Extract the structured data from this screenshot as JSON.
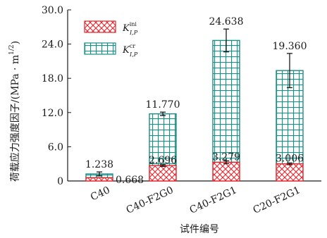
{
  "chart_data": {
    "type": "bar",
    "stacked": true,
    "categories": [
      "C40",
      "C40-F2G0",
      "C40-F2G1",
      "C20-F2G1"
    ],
    "series": [
      {
        "name_symbol": "K",
        "name_superscript": "ini",
        "name_subscript": "Ⅰ,P",
        "values": [
          0.57,
          2.696,
          3.279,
          3.006
        ],
        "error": [
          0.0,
          0.15,
          0.25,
          0.15
        ],
        "color": "#e8232a",
        "pattern": "crosshatch"
      },
      {
        "name_symbol": "K",
        "name_superscript": "cr",
        "name_subscript": "Ⅰ,P",
        "values": [
          0.668,
          9.074,
          21.359,
          16.354
        ],
        "error": [
          0.35,
          0.3,
          2.0,
          3.0
        ],
        "color": "#1b8f86",
        "pattern": "grid"
      }
    ],
    "total_labels": [
      "1.238",
      "11.770",
      "24.638",
      "19.360"
    ],
    "ini_labels": [
      "",
      "2.696",
      "3.279",
      "3.006"
    ],
    "extra_labels": [
      "0.668",
      "",
      "",
      ""
    ],
    "xlabel": "试件编号",
    "ylabel": "荷载应力强度因子/(MPa · m",
    "ylabel_sup": "1/2",
    "ylabel_end": ")",
    "ylim": [
      0,
      30
    ],
    "yticks": [
      "0",
      "6.0",
      "12.0",
      "18.0",
      "24.0",
      "30.0"
    ],
    "ytick_values": [
      0,
      6,
      12,
      18,
      24,
      30
    ],
    "legend_position": "top-left",
    "grid": false
  }
}
